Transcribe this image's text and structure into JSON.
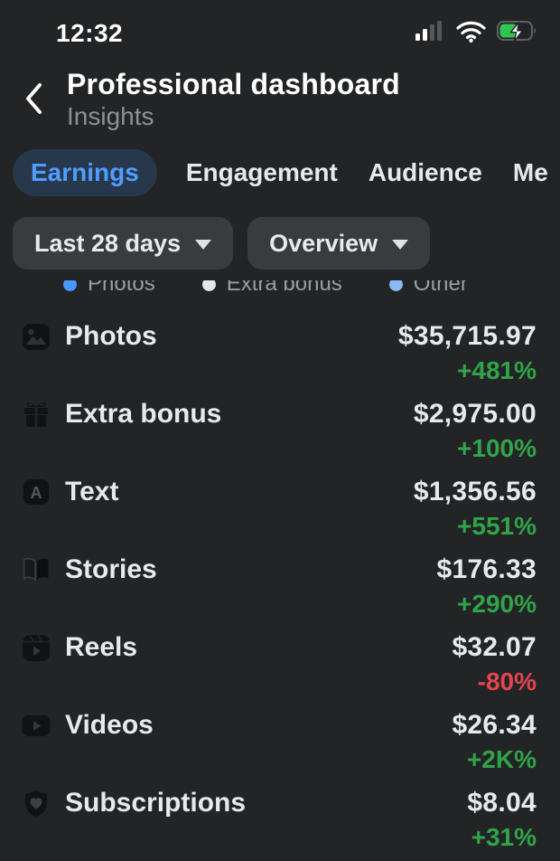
{
  "status_bar": {
    "time": "12:32"
  },
  "header": {
    "title": "Professional dashboard",
    "subtitle": "Insights"
  },
  "tabs": [
    {
      "label": "Earnings",
      "active": true
    },
    {
      "label": "Engagement",
      "active": false
    },
    {
      "label": "Audience",
      "active": false
    },
    {
      "label": "Me",
      "active": false
    }
  ],
  "filters": [
    {
      "label": "Last 28 days"
    },
    {
      "label": "Overview"
    }
  ],
  "legend": [
    {
      "label": "Photos",
      "color": "#4599ff"
    },
    {
      "label": "Extra bonus",
      "color": "#e4e6eb"
    },
    {
      "label": "Other",
      "color": "#8ab9f5"
    }
  ],
  "earnings_rows": [
    {
      "label": "Photos",
      "icon": "photos-icon",
      "amount": "$35,715.97",
      "change": "+481%",
      "trend": "up"
    },
    {
      "label": "Extra bonus",
      "icon": "gift-icon",
      "amount": "$2,975.00",
      "change": "+100%",
      "trend": "up"
    },
    {
      "label": "Text",
      "icon": "text-icon",
      "amount": "$1,356.56",
      "change": "+551%",
      "trend": "up"
    },
    {
      "label": "Stories",
      "icon": "stories-icon",
      "amount": "$176.33",
      "change": "+290%",
      "trend": "up"
    },
    {
      "label": "Reels",
      "icon": "reels-icon",
      "amount": "$32.07",
      "change": "-80%",
      "trend": "down"
    },
    {
      "label": "Videos",
      "icon": "videos-icon",
      "amount": "$26.34",
      "change": "+2K%",
      "trend": "up"
    },
    {
      "label": "Subscriptions",
      "icon": "subscriptions-icon",
      "amount": "$8.04",
      "change": "+31%",
      "trend": "up"
    }
  ],
  "colors": {
    "background": "#232425",
    "accent_blue": "#4f9eff",
    "tab_pill_bg": "#27384d",
    "filter_pill_bg": "#3a3b3c",
    "positive_green": "#2fa44a",
    "negative_red": "#e2454e",
    "subtitle_gray": "#8d9095"
  }
}
